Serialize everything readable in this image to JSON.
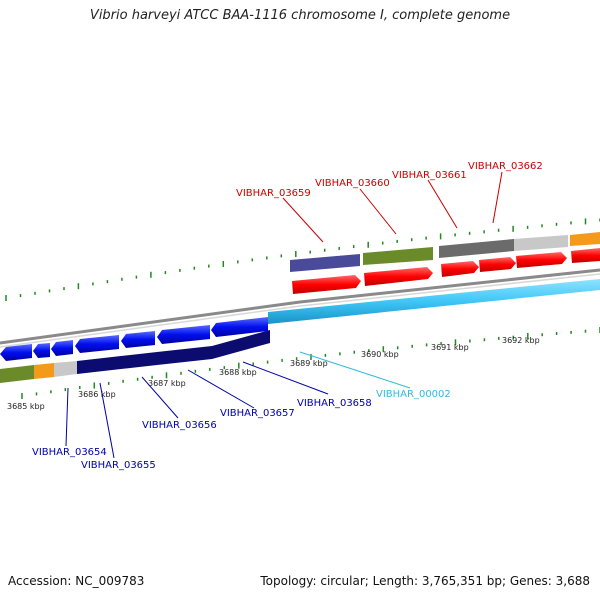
{
  "title": "Vibrio harveyi ATCC BAA-1116 chromosome I, complete genome",
  "footer": {
    "accession": "Accession: NC_009783",
    "summary": "Topology: circular; Length: 3,765,351 bp; Genes: 3,688"
  },
  "ticks": [
    "3685 kbp",
    "3686 kbp",
    "3687 kbp",
    "3688 kbp",
    "3689 kbp",
    "3690 kbp",
    "3691 kbp",
    "3692 kbp"
  ],
  "top_labels": [
    "VIBHAR_03659",
    "VIBHAR_03660",
    "VIBHAR_03661",
    "VIBHAR_03662"
  ],
  "bottom_labels": [
    "VIBHAR_03654",
    "VIBHAR_03655",
    "VIBHAR_03656",
    "VIBHAR_03657",
    "VIBHAR_03658"
  ],
  "rna_label": "VIBHAR_00002",
  "colors": {
    "forward_label": "#cc0000",
    "reverse_label": "#0000aa",
    "rna_label": "#33bbdd",
    "tick": "#228822",
    "cds_forward": "#ff0000",
    "cds_reverse": "#0000ee",
    "rrna": "#44ccff"
  }
}
